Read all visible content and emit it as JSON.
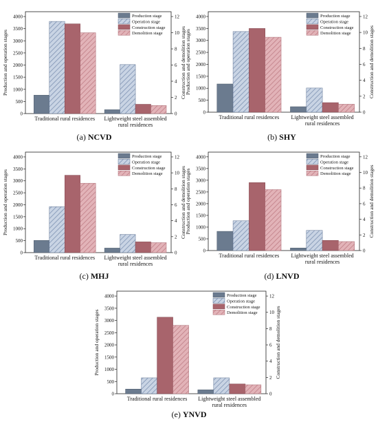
{
  "chart_data": [
    {
      "type": "bar",
      "caption_letter": "(a)",
      "caption_text": "NCVD",
      "categories": [
        [
          "Traditional rural residences"
        ],
        [
          "Lightweight steel assembled",
          "rural residences"
        ]
      ],
      "series": [
        {
          "name": "Production stage",
          "axis": "left",
          "values": [
            760,
            160
          ]
        },
        {
          "name": "Operation stage",
          "axis": "left",
          "values": [
            3800,
            2020
          ]
        },
        {
          "name": "Construction stage",
          "axis": "right",
          "values": [
            11.1,
            1.15
          ]
        },
        {
          "name": "Demolition stage",
          "axis": "right",
          "values": [
            10.0,
            1.0
          ]
        }
      ],
      "ylabel": "Production and operation stages",
      "y2label": "Construction and demolition stages",
      "yticks": [
        "0",
        "500",
        "1000",
        "1500",
        "2000",
        "2500",
        "3000",
        "3500",
        "4000"
      ],
      "y2ticks": [
        "0",
        "2",
        "4",
        "6",
        "8",
        "10",
        "12"
      ],
      "ylim": [
        0,
        4200
      ],
      "y2lim": [
        0,
        12.6
      ],
      "legend": "top-right"
    },
    {
      "type": "bar",
      "caption_letter": "(b)",
      "caption_text": "SHY",
      "categories": [
        [
          "Traditional rural residences"
        ],
        [
          "Lightweight steel assembled",
          "rural residences"
        ]
      ],
      "series": [
        {
          "name": "Production stage",
          "axis": "left",
          "values": [
            1180,
            230
          ]
        },
        {
          "name": "Operation stage",
          "axis": "left",
          "values": [
            3370,
            1010
          ]
        },
        {
          "name": "Construction stage",
          "axis": "right",
          "values": [
            10.5,
            1.2
          ]
        },
        {
          "name": "Demolition stage",
          "axis": "right",
          "values": [
            9.4,
            1.0
          ]
        }
      ],
      "ylabel": "Production and operation stages",
      "y2label": "Construction and demolition stages",
      "yticks": [
        "0",
        "500",
        "1000",
        "1500",
        "2000",
        "2500",
        "3000",
        "3500",
        "4000"
      ],
      "y2ticks": [
        "0",
        "2",
        "4",
        "6",
        "8",
        "10",
        "12"
      ],
      "ylim": [
        0,
        4200
      ],
      "y2lim": [
        0,
        12.6
      ],
      "legend": "top-right"
    },
    {
      "type": "bar",
      "caption_letter": "(c)",
      "caption_text": "MHJ",
      "categories": [
        [
          "Traditional rural residences"
        ],
        [
          "Lightweight steel assembled",
          "rural residences"
        ]
      ],
      "series": [
        {
          "name": "Production stage",
          "axis": "left",
          "values": [
            510,
            190
          ]
        },
        {
          "name": "Operation stage",
          "axis": "left",
          "values": [
            1920,
            760
          ]
        },
        {
          "name": "Construction stage",
          "axis": "right",
          "values": [
            9.7,
            1.35
          ]
        },
        {
          "name": "Demolition stage",
          "axis": "right",
          "values": [
            8.7,
            1.25
          ]
        }
      ],
      "ylabel": "Production and operation stages",
      "y2label": "Construction and demolition stages",
      "yticks": [
        "0",
        "500",
        "1000",
        "1500",
        "2000",
        "2500",
        "3000",
        "3500",
        "4000"
      ],
      "y2ticks": [
        "0",
        "2",
        "4",
        "6",
        "8",
        "10",
        "12"
      ],
      "ylim": [
        0,
        4200
      ],
      "y2lim": [
        0,
        12.6
      ],
      "legend": "top-right"
    },
    {
      "type": "bar",
      "caption_letter": "(d)",
      "caption_text": "LNVD",
      "categories": [
        [
          "Traditional rural residences"
        ],
        [
          "Lightweight steel assembled",
          "rural residences"
        ]
      ],
      "series": [
        {
          "name": "Production stage",
          "axis": "left",
          "values": [
            820,
            110
          ]
        },
        {
          "name": "Operation stage",
          "axis": "left",
          "values": [
            1270,
            860
          ]
        },
        {
          "name": "Construction stage",
          "axis": "right",
          "values": [
            8.7,
            1.3
          ]
        },
        {
          "name": "Demolition stage",
          "axis": "right",
          "values": [
            7.8,
            1.15
          ]
        }
      ],
      "ylabel": "Production and operation stages",
      "y2label": "Construction and demolition stages",
      "yticks": [
        "0",
        "500",
        "1000",
        "1500",
        "2000",
        "2500",
        "3000",
        "3500",
        "4000"
      ],
      "y2ticks": [
        "0",
        "2",
        "4",
        "6",
        "8",
        "10",
        "12"
      ],
      "ylim": [
        0,
        4200
      ],
      "y2lim": [
        0,
        12.6
      ],
      "legend": "top-right"
    },
    {
      "type": "bar",
      "caption_letter": "(e)",
      "caption_text": "YNVD",
      "categories": [
        [
          "Traditional rural residences"
        ],
        [
          "Lightweight steel assembled",
          "rural residences"
        ]
      ],
      "series": [
        {
          "name": "Production stage",
          "axis": "left",
          "values": [
            190,
            160
          ]
        },
        {
          "name": "Operation stage",
          "axis": "left",
          "values": [
            650,
            650
          ]
        },
        {
          "name": "Construction stage",
          "axis": "right",
          "values": [
            9.4,
            1.2
          ]
        },
        {
          "name": "Demolition stage",
          "axis": "right",
          "values": [
            8.4,
            1.1
          ]
        }
      ],
      "ylabel": "Production and operation stages",
      "y2label": "Construction and demolition stages",
      "yticks": [
        "0",
        "500",
        "1000",
        "1500",
        "2000",
        "2500",
        "3000",
        "3500",
        "4000"
      ],
      "y2ticks": [
        "0",
        "2",
        "4",
        "6",
        "8",
        "10",
        "12"
      ],
      "ylim": [
        0,
        4200
      ],
      "y2lim": [
        0,
        12.6
      ],
      "legend": "top-right"
    }
  ],
  "colors": {
    "production": "#6b7b8f",
    "operation_fill": "#c9d4e4",
    "operation_hatch": "#7d92b2",
    "construction": "#a8646c",
    "demolition_fill": "#e2b3b8",
    "demolition_hatch": "#c07e86"
  }
}
